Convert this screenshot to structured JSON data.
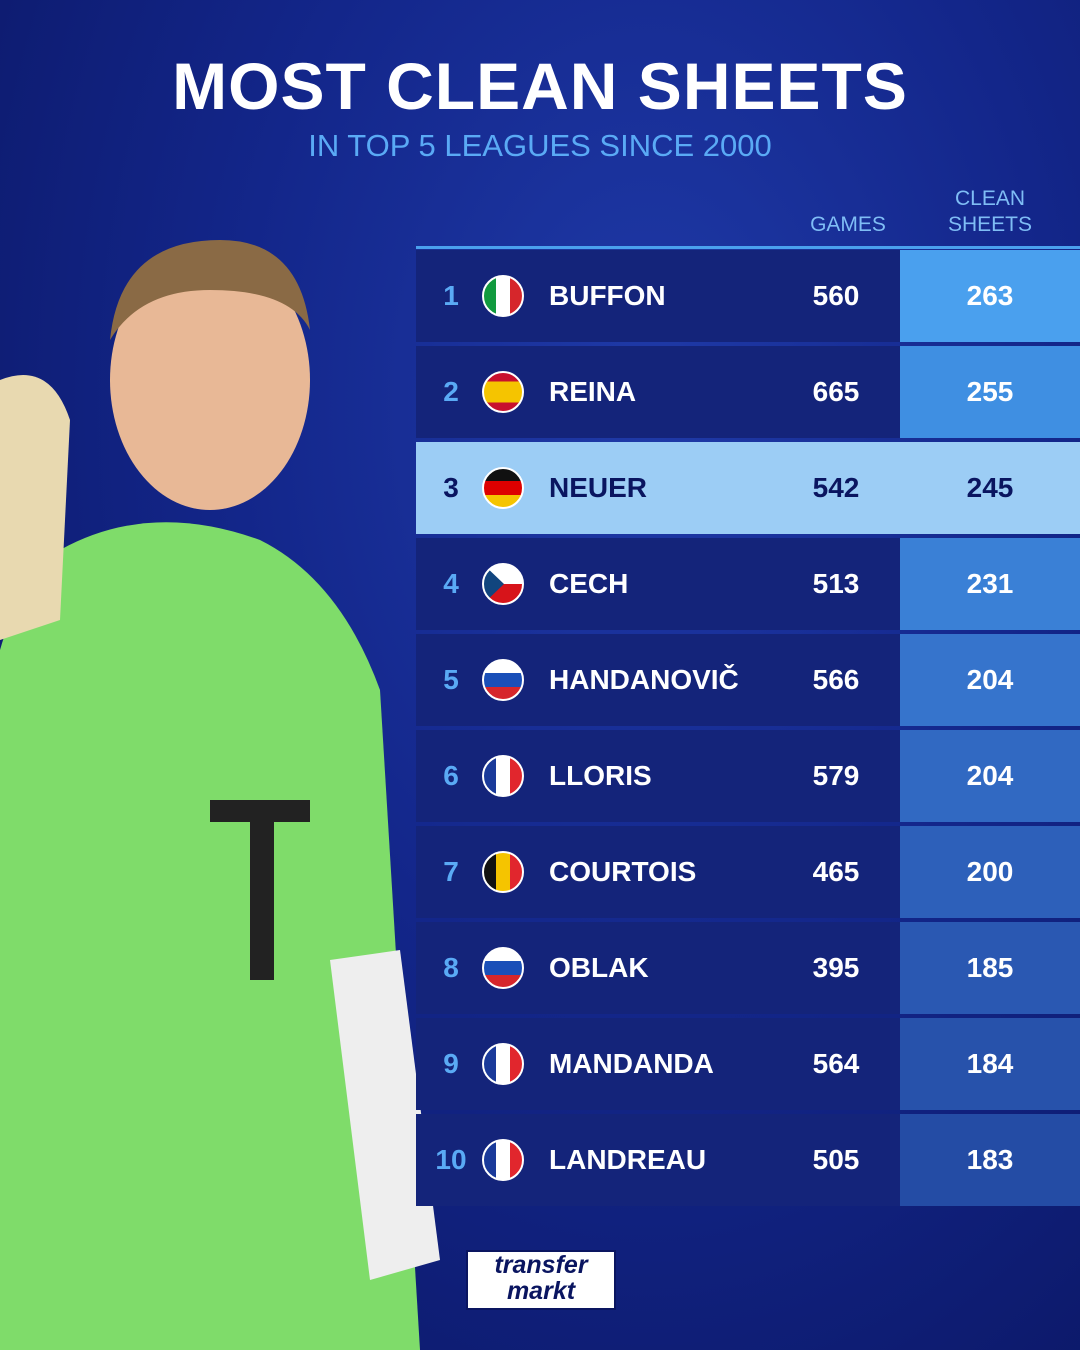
{
  "header": {
    "title": "MOST CLEAN SHEETS",
    "subtitle": "IN TOP 5 LEAGUES SINCE 2000"
  },
  "table": {
    "columns": [
      "GAMES",
      "CLEAN SHEETS"
    ],
    "rows": [
      [
        1,
        "BUFFON",
        560,
        263
      ],
      [
        2,
        "REINA",
        665,
        255
      ],
      [
        3,
        "NEUER",
        542,
        245
      ],
      [
        4,
        "CECH",
        513,
        231
      ],
      [
        5,
        "HANDANOVIČ",
        566,
        204
      ],
      [
        6,
        "LLORIS",
        579,
        204
      ],
      [
        7,
        "COURTOIS",
        465,
        200
      ],
      [
        8,
        "OBLAK",
        395,
        185
      ],
      [
        9,
        "MANDANDA",
        564,
        184
      ],
      [
        10,
        "LANDREAU",
        505,
        183
      ]
    ]
  },
  "logo": [
    "transfer",
    "markt"
  ]
}
